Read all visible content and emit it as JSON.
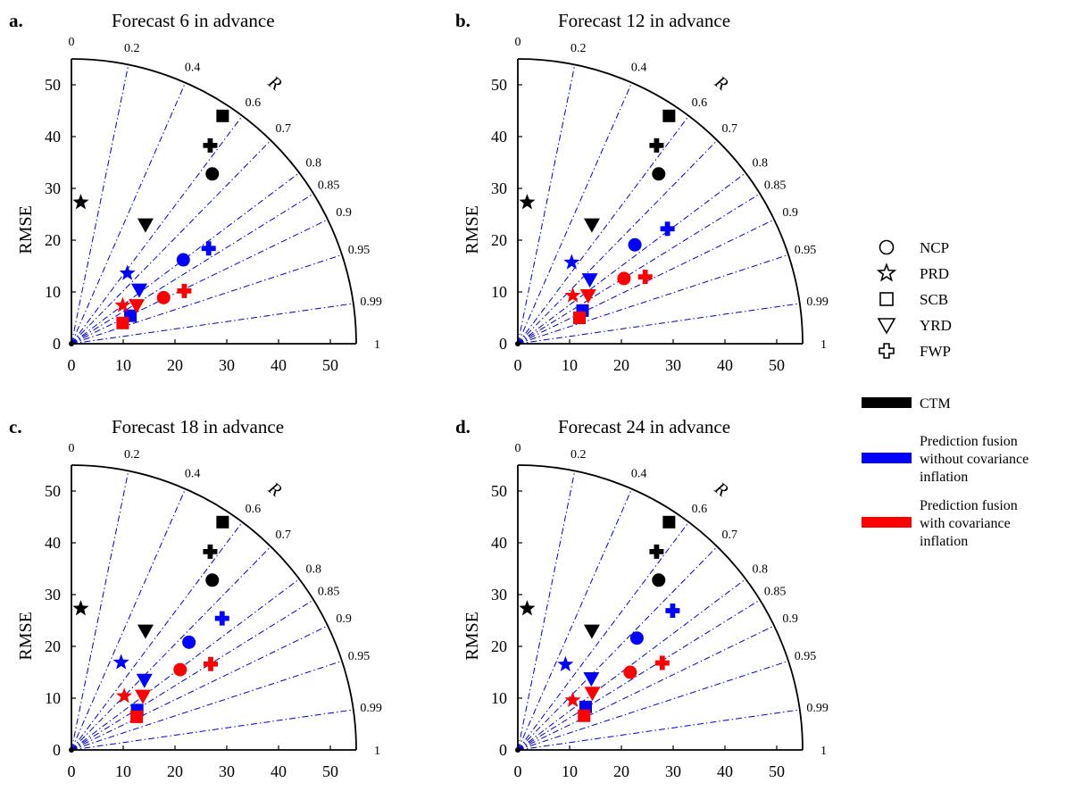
{
  "figure": {
    "legend": {
      "regions": [
        {
          "label": "NCP",
          "marker": "circle"
        },
        {
          "label": "PRD",
          "marker": "star"
        },
        {
          "label": "SCB",
          "marker": "square"
        },
        {
          "label": "YRD",
          "marker": "triangle-down"
        },
        {
          "label": "FWP",
          "marker": "plus"
        }
      ],
      "methods": [
        {
          "lines": [
            "CTM"
          ],
          "color": "#000000"
        },
        {
          "lines": [
            "Prediction fusion",
            "without covariance",
            "inflation"
          ],
          "color": "#0000ff"
        },
        {
          "lines": [
            "Prediction fusion",
            "with covariance",
            "inflation"
          ],
          "color": "#ff0000"
        }
      ]
    }
  },
  "chart_data": [
    {
      "type": "scatter",
      "panel_letter": "a.",
      "title": "Forecast 6 in advance",
      "ylabel": "RMSE",
      "correlation_label": "R",
      "radius_max": 55,
      "xticks": [
        0,
        10,
        20,
        30,
        40,
        50
      ],
      "yticks": [
        0,
        10,
        20,
        30,
        40,
        50
      ],
      "correlation_ticks": [
        "0",
        "0.2",
        "0.4",
        "0.6",
        "0.7",
        "0.8",
        "0.85",
        "0.9",
        "0.95",
        "0.99",
        "1"
      ],
      "series": [
        {
          "method": "CTM",
          "color": "#000000",
          "points": [
            {
              "region": "NCP",
              "x": 27.2,
              "y": 32.8
            },
            {
              "region": "PRD",
              "x": 1.8,
              "y": 27.3
            },
            {
              "region": "SCB",
              "x": 29.2,
              "y": 44.0
            },
            {
              "region": "YRD",
              "x": 14.3,
              "y": 23.0
            },
            {
              "region": "FWP",
              "x": 26.8,
              "y": 38.3
            }
          ]
        },
        {
          "method": "Prediction fusion without covariance inflation",
          "color": "#0000ff",
          "points": [
            {
              "region": "NCP",
              "x": 21.6,
              "y": 16.2
            },
            {
              "region": "PRD",
              "x": 10.8,
              "y": 13.6
            },
            {
              "region": "SCB",
              "x": 11.4,
              "y": 5.4
            },
            {
              "region": "YRD",
              "x": 13.1,
              "y": 10.4
            },
            {
              "region": "FWP",
              "x": 26.5,
              "y": 18.4
            }
          ]
        },
        {
          "method": "Prediction fusion with covariance inflation",
          "color": "#ff0000",
          "points": [
            {
              "region": "NCP",
              "x": 17.8,
              "y": 8.9
            },
            {
              "region": "PRD",
              "x": 9.9,
              "y": 7.4
            },
            {
              "region": "SCB",
              "x": 9.9,
              "y": 4.0
            },
            {
              "region": "YRD",
              "x": 12.6,
              "y": 7.4
            },
            {
              "region": "FWP",
              "x": 21.8,
              "y": 10.2
            }
          ]
        }
      ]
    },
    {
      "type": "scatter",
      "panel_letter": "b.",
      "title": "Forecast 12 in advance",
      "ylabel": "RMSE",
      "correlation_label": "R",
      "radius_max": 55,
      "xticks": [
        0,
        10,
        20,
        30,
        40,
        50
      ],
      "yticks": [
        0,
        10,
        20,
        30,
        40,
        50
      ],
      "correlation_ticks": [
        "0",
        "0.2",
        "0.4",
        "0.6",
        "0.7",
        "0.8",
        "0.85",
        "0.9",
        "0.95",
        "0.99",
        "1"
      ],
      "series": [
        {
          "method": "CTM",
          "color": "#000000",
          "points": [
            {
              "region": "NCP",
              "x": 27.2,
              "y": 32.8
            },
            {
              "region": "PRD",
              "x": 1.8,
              "y": 27.3
            },
            {
              "region": "SCB",
              "x": 29.2,
              "y": 44.0
            },
            {
              "region": "YRD",
              "x": 14.3,
              "y": 23.0
            },
            {
              "region": "FWP",
              "x": 26.8,
              "y": 38.3
            }
          ]
        },
        {
          "method": "Prediction fusion without covariance inflation",
          "color": "#0000ff",
          "points": [
            {
              "region": "NCP",
              "x": 22.6,
              "y": 19.1
            },
            {
              "region": "PRD",
              "x": 10.4,
              "y": 15.7
            },
            {
              "region": "SCB",
              "x": 12.5,
              "y": 6.4
            },
            {
              "region": "YRD",
              "x": 13.9,
              "y": 12.4
            },
            {
              "region": "FWP",
              "x": 28.9,
              "y": 22.2
            }
          ]
        },
        {
          "method": "Prediction fusion with covariance inflation",
          "color": "#ff0000",
          "points": [
            {
              "region": "NCP",
              "x": 20.5,
              "y": 12.6
            },
            {
              "region": "PRD",
              "x": 10.6,
              "y": 9.3
            },
            {
              "region": "SCB",
              "x": 11.9,
              "y": 5.0
            },
            {
              "region": "YRD",
              "x": 13.6,
              "y": 9.3
            },
            {
              "region": "FWP",
              "x": 24.6,
              "y": 12.9
            }
          ]
        }
      ]
    },
    {
      "type": "scatter",
      "panel_letter": "c.",
      "title": "Forecast 18 in advance",
      "ylabel": "RMSE",
      "correlation_label": "R",
      "radius_max": 55,
      "xticks": [
        0,
        10,
        20,
        30,
        40,
        50
      ],
      "yticks": [
        0,
        10,
        20,
        30,
        40,
        50
      ],
      "correlation_ticks": [
        "0",
        "0.2",
        "0.4",
        "0.6",
        "0.7",
        "0.8",
        "0.85",
        "0.9",
        "0.95",
        "0.99",
        "1"
      ],
      "series": [
        {
          "method": "CTM",
          "color": "#000000",
          "points": [
            {
              "region": "NCP",
              "x": 27.2,
              "y": 32.8
            },
            {
              "region": "PRD",
              "x": 1.8,
              "y": 27.3
            },
            {
              "region": "SCB",
              "x": 29.2,
              "y": 44.0
            },
            {
              "region": "YRD",
              "x": 14.3,
              "y": 23.0
            },
            {
              "region": "FWP",
              "x": 26.8,
              "y": 38.3
            }
          ]
        },
        {
          "method": "Prediction fusion without covariance inflation",
          "color": "#0000ff",
          "points": [
            {
              "region": "NCP",
              "x": 22.7,
              "y": 20.8
            },
            {
              "region": "PRD",
              "x": 9.6,
              "y": 16.9
            },
            {
              "region": "SCB",
              "x": 12.7,
              "y": 7.7
            },
            {
              "region": "YRD",
              "x": 14.1,
              "y": 13.5
            },
            {
              "region": "FWP",
              "x": 29.1,
              "y": 25.4
            }
          ]
        },
        {
          "method": "Prediction fusion with covariance inflation",
          "color": "#ff0000",
          "points": [
            {
              "region": "NCP",
              "x": 21.0,
              "y": 15.5
            },
            {
              "region": "PRD",
              "x": 10.2,
              "y": 10.4
            },
            {
              "region": "SCB",
              "x": 12.6,
              "y": 6.4
            },
            {
              "region": "YRD",
              "x": 13.8,
              "y": 10.4
            },
            {
              "region": "FWP",
              "x": 26.9,
              "y": 16.6
            }
          ]
        }
      ]
    },
    {
      "type": "scatter",
      "panel_letter": "d.",
      "title": "Forecast 24 in advance",
      "ylabel": "RMSE",
      "correlation_label": "R",
      "radius_max": 55,
      "xticks": [
        0,
        10,
        20,
        30,
        40,
        50
      ],
      "yticks": [
        0,
        10,
        20,
        30,
        40,
        50
      ],
      "correlation_ticks": [
        "0",
        "0.2",
        "0.4",
        "0.6",
        "0.7",
        "0.8",
        "0.85",
        "0.9",
        "0.95",
        "0.99",
        "1"
      ],
      "series": [
        {
          "method": "CTM",
          "color": "#000000",
          "points": [
            {
              "region": "NCP",
              "x": 27.2,
              "y": 32.8
            },
            {
              "region": "PRD",
              "x": 1.8,
              "y": 27.3
            },
            {
              "region": "SCB",
              "x": 29.2,
              "y": 44.0
            },
            {
              "region": "YRD",
              "x": 14.3,
              "y": 23.0
            },
            {
              "region": "FWP",
              "x": 26.8,
              "y": 38.3
            }
          ]
        },
        {
          "method": "Prediction fusion without covariance inflation",
          "color": "#0000ff",
          "points": [
            {
              "region": "NCP",
              "x": 23.0,
              "y": 21.6
            },
            {
              "region": "PRD",
              "x": 9.2,
              "y": 16.5
            },
            {
              "region": "SCB",
              "x": 13.1,
              "y": 8.3
            },
            {
              "region": "YRD",
              "x": 14.2,
              "y": 13.8
            },
            {
              "region": "FWP",
              "x": 29.9,
              "y": 26.9
            }
          ]
        },
        {
          "method": "Prediction fusion with covariance inflation",
          "color": "#ff0000",
          "points": [
            {
              "region": "NCP",
              "x": 21.7,
              "y": 15.0
            },
            {
              "region": "PRD",
              "x": 10.6,
              "y": 9.6
            },
            {
              "region": "SCB",
              "x": 12.8,
              "y": 6.6
            },
            {
              "region": "YRD",
              "x": 14.4,
              "y": 11.0
            },
            {
              "region": "FWP",
              "x": 27.9,
              "y": 16.8
            }
          ]
        }
      ]
    }
  ]
}
